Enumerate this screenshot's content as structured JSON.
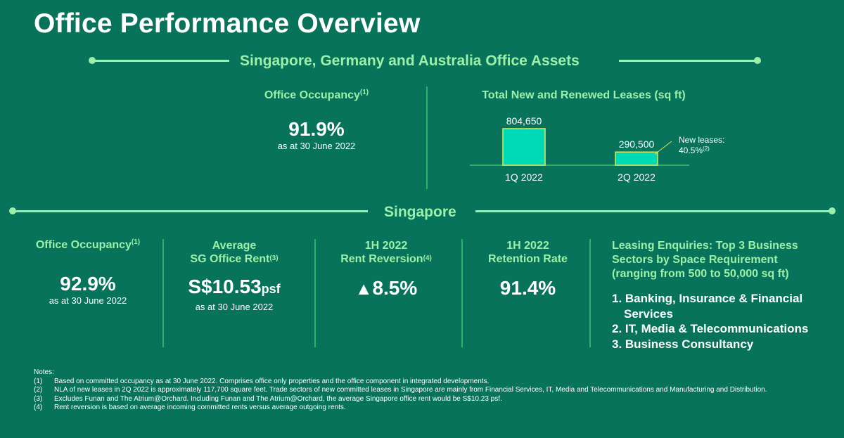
{
  "title": "Office Performance Overview",
  "section_top": {
    "title": "Singapore, Germany and Australia Office Assets"
  },
  "top_occupancy": {
    "label": "Office Occupancy",
    "sup": "(1)",
    "value": "91.9%",
    "sub": "as at 30 June 2022"
  },
  "chart_data": {
    "type": "bar",
    "title": "Total New and Renewed Leases (sq ft)",
    "categories": [
      "1Q 2022",
      "2Q 2022"
    ],
    "values": [
      804650,
      290500
    ],
    "data_labels": [
      "804,650",
      "290,500"
    ],
    "annotation": {
      "line1": "New leases:",
      "line2": "40.5%",
      "sup": "(2)"
    },
    "colors": {
      "bar": "#00d9b5",
      "bar_border": "#d8e85a",
      "axis": "#2fb06b"
    }
  },
  "section_sg": {
    "title": "Singapore"
  },
  "sg_metrics": {
    "occupancy": {
      "label": "Office Occupancy",
      "sup": "(1)",
      "value": "92.9%",
      "sub": "as at 30 June 2022"
    },
    "rent": {
      "label1": "Average",
      "label2": "SG Office Rent",
      "sup": "(3)",
      "value": "S$10.53",
      "unit": "psf",
      "sub": "as at 30 June 2022"
    },
    "reversion": {
      "label1": "1H 2022",
      "label2": "Rent Reversion",
      "sup": "(4)",
      "arrow": "▲",
      "value": "8.5%"
    },
    "retention": {
      "label1": "1H 2022",
      "label2": "Retention Rate",
      "value": "91.4%"
    }
  },
  "leasing": {
    "header": [
      "Leasing Enquiries: Top 3 Business",
      "Sectors by Space Requirement",
      "(ranging from 500 to 50,000 sq ft)"
    ],
    "items": [
      "1. Banking, Insurance & Financial",
      "Services",
      "2. IT, Media & Telecommunications",
      "3. Business Consultancy"
    ]
  },
  "notes": {
    "heading": "Notes:",
    "items": [
      {
        "num": "(1)",
        "text": "Based on committed occupancy as at 30 June 2022. Comprises office only properties and the office component in integrated developments."
      },
      {
        "num": "(2)",
        "text": "NLA of new leases in 2Q 2022 is approximately 117,700 square feet. Trade sectors of new committed leases in Singapore are mainly from Financial Services, IT, Media and Telecommunications and Manufacturing and Distribution."
      },
      {
        "num": "(3)",
        "text": "Excludes Funan and The Atrium@Orchard. Including Funan and The Atrium@Orchard, the average Singapore office rent would be S$10.23 psf."
      },
      {
        "num": "(4)",
        "text": "Rent reversion is based on average incoming committed rents versus average outgoing rents."
      }
    ]
  }
}
